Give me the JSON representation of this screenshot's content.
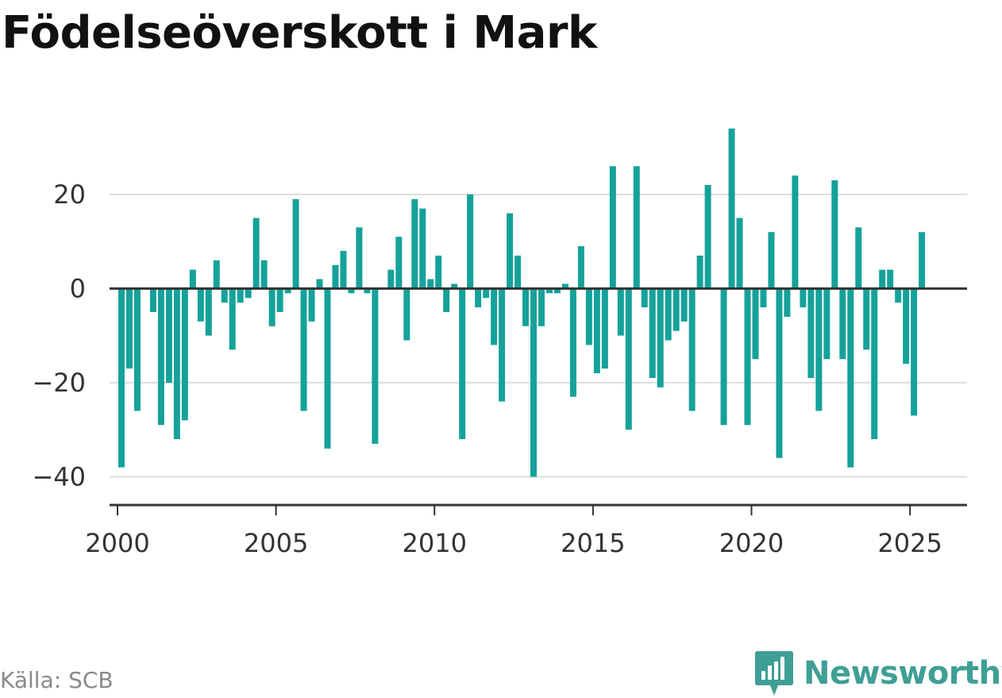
{
  "title": "Födelseöverskott i Mark",
  "source": "Källa: SCB",
  "brand": {
    "name": "Newsworthy",
    "icon": "newsworthy-logo-icon",
    "color": "#3f9f94"
  },
  "colors": {
    "bar": "#14a29a",
    "grid": "#dddddd",
    "axis": "#333333",
    "text": "#333333"
  },
  "chart_data": {
    "type": "bar",
    "title": "Födelseöverskott i Mark",
    "xlabel": "",
    "ylabel": "",
    "frequency": "quarterly",
    "start": "2000-Q1",
    "xlim": [
      1999.75,
      2026.8
    ],
    "ylim": [
      -46,
      36
    ],
    "x_ticks": [
      2000,
      2005,
      2010,
      2015,
      2020,
      2025
    ],
    "y_ticks": [
      -40,
      -20,
      0,
      20
    ],
    "y_tick_labels": [
      "−40",
      "−20",
      "0",
      "20"
    ],
    "grid": true,
    "legend": "none",
    "values": [
      -38,
      -17,
      -26,
      0,
      -5,
      -29,
      -20,
      -32,
      -28,
      4,
      -7,
      -10,
      6,
      -3,
      -13,
      -3,
      -2,
      15,
      6,
      -8,
      -5,
      -1,
      19,
      -26,
      -7,
      2,
      -34,
      5,
      8,
      -1,
      13,
      -1,
      -33,
      0,
      4,
      11,
      -11,
      19,
      17,
      2,
      7,
      -5,
      1,
      -32,
      20,
      -4,
      -2,
      -12,
      -24,
      16,
      7,
      -8,
      -40,
      -8,
      -1,
      -1,
      1,
      -23,
      9,
      -12,
      -18,
      -17,
      26,
      -10,
      -30,
      26,
      -4,
      -19,
      -21,
      -11,
      -9,
      -7,
      -26,
      7,
      22,
      0,
      -29,
      34,
      15,
      -29,
      -15,
      -4,
      12,
      -36,
      -6,
      24,
      -4,
      -19,
      -26,
      -15,
      23,
      -15,
      -38,
      13,
      -13,
      -32,
      4,
      4,
      -3,
      -16,
      -27,
      12
    ]
  }
}
